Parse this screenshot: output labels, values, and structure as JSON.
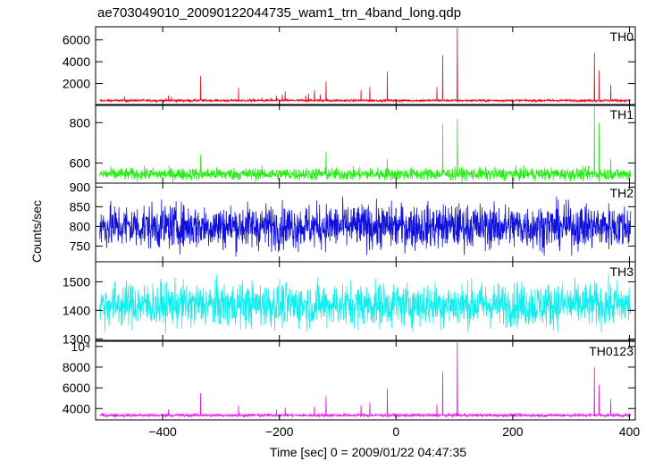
{
  "title": "ae703049010_20090122044735_wam1_trn_4band_long.qdp",
  "ylabel": "Counts/sec",
  "xlabel": "Time [sec] 0 = 2009/01/22 04:47:35",
  "chart_data": {
    "type": "line",
    "title": "ae703049010_20090122044735_wam1_trn_4band_long.qdp",
    "ylabel": "Counts/sec",
    "xlabel": "Time [sec] 0 = 2009/01/22 04:47:35",
    "xlim": [
      -515,
      410
    ],
    "x_ticks": [
      -400,
      -200,
      0,
      200,
      400
    ],
    "x_tick_labels": [
      "−400",
      "−200",
      "0",
      "200",
      "400"
    ],
    "x_range": [
      -508,
      402
    ],
    "grid": false,
    "panels": [
      {
        "name": "TH0",
        "color": "#e8101a",
        "ylim": [
          0,
          7200
        ],
        "y_ticks": [
          2000,
          4000,
          6000
        ],
        "y_tick_labels": [
          "2000",
          "4000",
          "6000"
        ],
        "baseline": 450,
        "noise": 80,
        "spikes": [
          [
            -465,
            800
          ],
          [
            -390,
            900
          ],
          [
            -385,
            800
          ],
          [
            -335,
            2700
          ],
          [
            -270,
            1600
          ],
          [
            -250,
            600
          ],
          [
            -230,
            700
          ],
          [
            -215,
            700
          ],
          [
            -205,
            900
          ],
          [
            -195,
            1000
          ],
          [
            -190,
            1300
          ],
          [
            -155,
            900
          ],
          [
            -150,
            1100
          ],
          [
            -140,
            1400
          ],
          [
            -130,
            1000
          ],
          [
            -120,
            2200
          ],
          [
            -60,
            1400
          ],
          [
            -45,
            1700
          ],
          [
            -15,
            3100
          ],
          [
            70,
            1700
          ],
          [
            80,
            4600
          ],
          [
            105,
            7100
          ],
          [
            340,
            4800
          ],
          [
            348,
            3200
          ],
          [
            368,
            1900
          ]
        ]
      },
      {
        "name": "TH1",
        "color": "#22ee11",
        "ylim": [
          500,
          890
        ],
        "y_ticks": [
          600,
          800
        ],
        "y_tick_labels": [
          "600",
          "800"
        ],
        "baseline": 545,
        "noise": 22,
        "spikes": [
          [
            -335,
            640
          ],
          [
            -120,
            655
          ],
          [
            -15,
            620
          ],
          [
            80,
            795
          ],
          [
            105,
            820
          ],
          [
            340,
            880
          ],
          [
            348,
            800
          ],
          [
            368,
            620
          ]
        ]
      },
      {
        "name": "TH2",
        "color": "#1010dd",
        "ylim": [
          710,
          910
        ],
        "y_ticks": [
          750,
          800,
          850,
          900
        ],
        "y_tick_labels": [
          "750",
          "800",
          "850",
          "900"
        ],
        "baseline": 800,
        "noise": 40,
        "spikes": []
      },
      {
        "name": "TH3",
        "color": "#11eeee",
        "ylim": [
          1295,
          1570
        ],
        "y_ticks": [
          1300,
          1400,
          1500
        ],
        "y_tick_labels": [
          "1300",
          "1400",
          "1500"
        ],
        "baseline": 1420,
        "noise": 55,
        "spikes": []
      },
      {
        "name": "TH0123",
        "color": "#ee11ee",
        "ylim": [
          2900,
          10500
        ],
        "y_ticks": [
          4000,
          6000,
          8000,
          10000
        ],
        "y_tick_labels": [
          "4000",
          "6000",
          "8000",
          "10⁴"
        ],
        "baseline": 3350,
        "noise": 110,
        "spikes": [
          [
            -390,
            3900
          ],
          [
            -335,
            5500
          ],
          [
            -270,
            4300
          ],
          [
            -205,
            3900
          ],
          [
            -190,
            4100
          ],
          [
            -140,
            4200
          ],
          [
            -120,
            5200
          ],
          [
            -60,
            4300
          ],
          [
            -45,
            4600
          ],
          [
            -15,
            5900
          ],
          [
            70,
            4400
          ],
          [
            80,
            7600
          ],
          [
            105,
            10400
          ],
          [
            340,
            8000
          ],
          [
            348,
            6300
          ],
          [
            368,
            4900
          ]
        ]
      }
    ]
  }
}
